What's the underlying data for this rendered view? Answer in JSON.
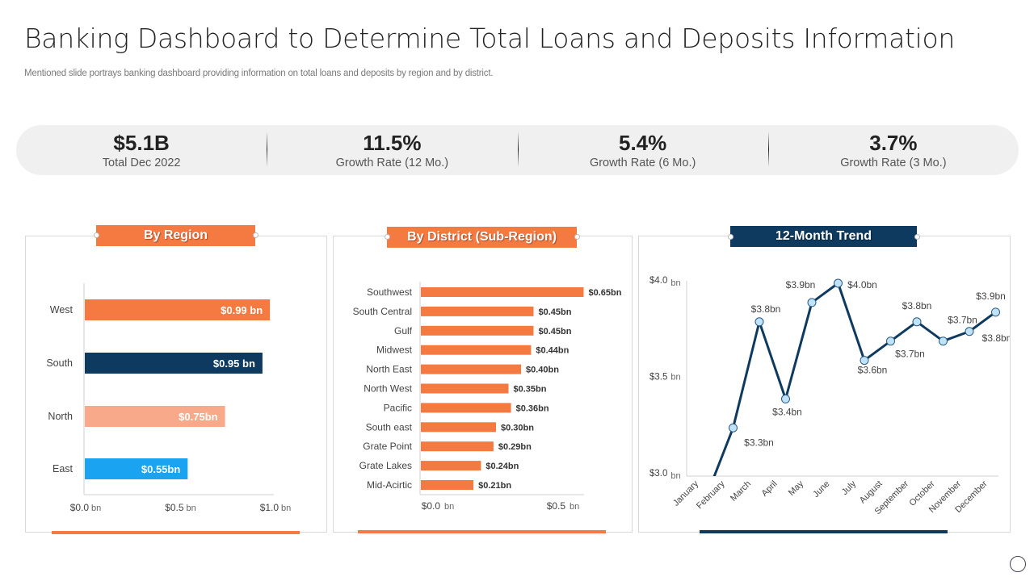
{
  "header": {
    "title": "Banking Dashboard to Determine Total Loans and Deposits Information",
    "subtitle": "Mentioned slide portrays banking dashboard providing information on total loans and deposits by region and by district."
  },
  "kpis": [
    {
      "value": "$5.1B",
      "label": "Total Dec 2022"
    },
    {
      "value": "11.5%",
      "label": "Growth Rate (12 Mo.)"
    },
    {
      "value": "5.4%",
      "label": "Growth Rate (6 Mo.)"
    },
    {
      "value": "3.7%",
      "label": "Growth Rate (3 Mo.)"
    }
  ],
  "panels": {
    "region": {
      "title": "By Region"
    },
    "district": {
      "title": "By District (Sub-Region)"
    },
    "trend": {
      "title": "12-Month Trend"
    }
  },
  "colors": {
    "orange": "#F47A42",
    "navy": "#0E3A5F",
    "peach": "#F8A98A",
    "sky": "#1AA3F0",
    "marker": "#BFE3FA"
  },
  "chart_data": [
    {
      "type": "bar",
      "orientation": "horizontal",
      "title": "By Region",
      "categories": [
        "West",
        "South",
        "North",
        "East"
      ],
      "values": [
        0.99,
        0.95,
        0.75,
        0.55
      ],
      "data_labels": [
        "$0.99 bn",
        "$0.95 bn",
        "$0.75bn",
        "$0.55bn"
      ],
      "bar_colors": [
        "#F47A42",
        "#0E3A5F",
        "#F8A98A",
        "#1AA3F0"
      ],
      "xticks": [
        {
          "v": "$0.0",
          "u": "bn"
        },
        {
          "v": "$0.5",
          "u": "bn"
        },
        {
          "v": "$1.0",
          "u": "bn"
        }
      ],
      "xlim": [
        0,
        1.0
      ],
      "xlabel": "",
      "ylabel": "",
      "grid": false
    },
    {
      "type": "bar",
      "orientation": "horizontal",
      "title": "By District (Sub-Region)",
      "categories": [
        "Southwest",
        "South Central",
        "Gulf",
        "Midwest",
        "North East",
        "North West",
        "Pacific",
        "South east",
        "Grate Point",
        "Grate Lakes",
        "Mid-Acirtic"
      ],
      "values": [
        0.65,
        0.45,
        0.45,
        0.44,
        0.4,
        0.35,
        0.36,
        0.3,
        0.29,
        0.24,
        0.21
      ],
      "data_labels": [
        "$0.65bn",
        "$0.45bn",
        "$0.45bn",
        "$0.44bn",
        "$0.40bn",
        "$0.35bn",
        "$0.36bn",
        "$0.30bn",
        "$0.29bn",
        "$0.24bn",
        "$0.21bn"
      ],
      "xticks": [
        {
          "v": "$0.0",
          "u": "bn"
        },
        {
          "v": "$0.5",
          "u": "bn"
        }
      ],
      "xlim": [
        0,
        0.65
      ],
      "xlabel": "",
      "ylabel": "",
      "grid": false
    },
    {
      "type": "line",
      "title": "12-Month Trend",
      "x": [
        "January",
        "February",
        "March",
        "April",
        "May",
        "June",
        "July",
        "August",
        "September",
        "October",
        "November",
        "December"
      ],
      "values": [
        2.9,
        3.25,
        3.8,
        3.4,
        3.9,
        4.0,
        3.6,
        3.7,
        3.8,
        3.7,
        3.75,
        3.85
      ],
      "point_labels": [
        "",
        "$3.3bn",
        "$3.8bn",
        "$3.4bn",
        "$3.9bn",
        "$4.0bn",
        "$3.6bn",
        "$3.7bn",
        "$3.8bn",
        "$3.7bn",
        "$3.8bn",
        "$3.9bn"
      ],
      "yticks": [
        {
          "v": "$4.0",
          "u": "bn"
        },
        {
          "v": "$3.5",
          "u": "bn"
        },
        {
          "v": "$3.0",
          "u": "bn"
        }
      ],
      "ylim": [
        3.0,
        4.0
      ],
      "xlabel": "",
      "ylabel": "",
      "grid": false
    }
  ]
}
